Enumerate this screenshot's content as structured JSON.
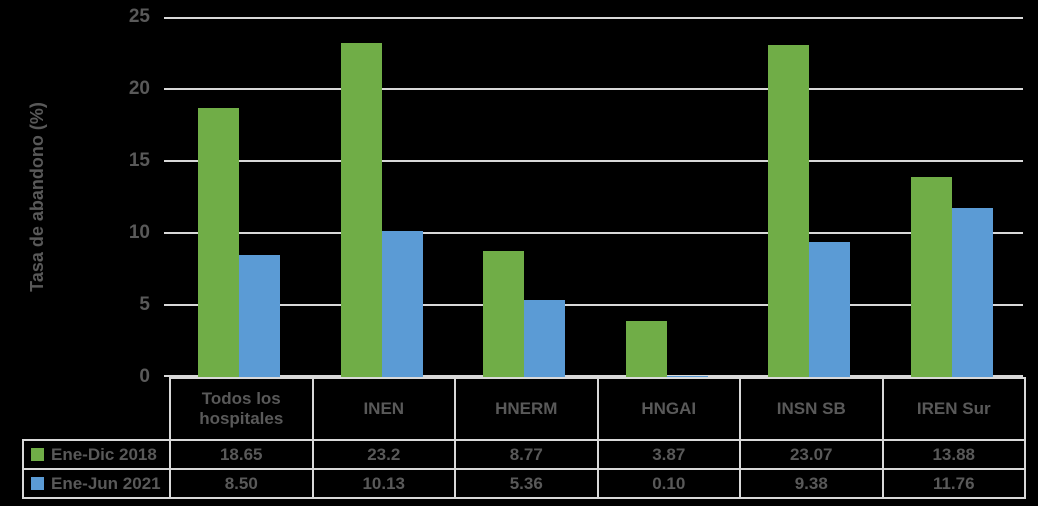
{
  "chart": {
    "y_axis_title": "Tasa de abandono (%)"
  },
  "colors": {
    "background": "#000000",
    "gridline": "#D9D9D9",
    "table_border": "#D9D9D9",
    "text": "#595959",
    "series_2018": "#70AD47",
    "series_2021": "#5B9BD5"
  },
  "chart_data": {
    "type": "bar",
    "title": "",
    "xlabel": "",
    "ylabel": "Tasa de abandono (%)",
    "ylim": [
      0,
      25
    ],
    "yticks": [
      0,
      5,
      10,
      15,
      20,
      25
    ],
    "ytick_labels": [
      "0",
      "5",
      "10",
      "15",
      "20",
      "25"
    ],
    "grid": true,
    "legend_position": "table-left",
    "categories": [
      "Todos los hospitales",
      "INEN",
      "HNERM",
      "HNGAI",
      "INSN SB",
      "IREN Sur"
    ],
    "series": [
      {
        "name": "Ene-Dic 2018",
        "color": "#70AD47",
        "values": [
          18.65,
          23.2,
          8.77,
          3.87,
          23.07,
          13.88
        ],
        "display": [
          "18.65",
          "23.2",
          "8.77",
          "3.87",
          "23.07",
          "13.88"
        ]
      },
      {
        "name": "Ene-Jun 2021",
        "color": "#5B9BD5",
        "values": [
          8.5,
          10.13,
          5.36,
          0.1,
          9.38,
          11.76
        ],
        "display": [
          "8.50",
          "10.13",
          "5.36",
          "0.10",
          "9.38",
          "11.76"
        ]
      }
    ]
  }
}
